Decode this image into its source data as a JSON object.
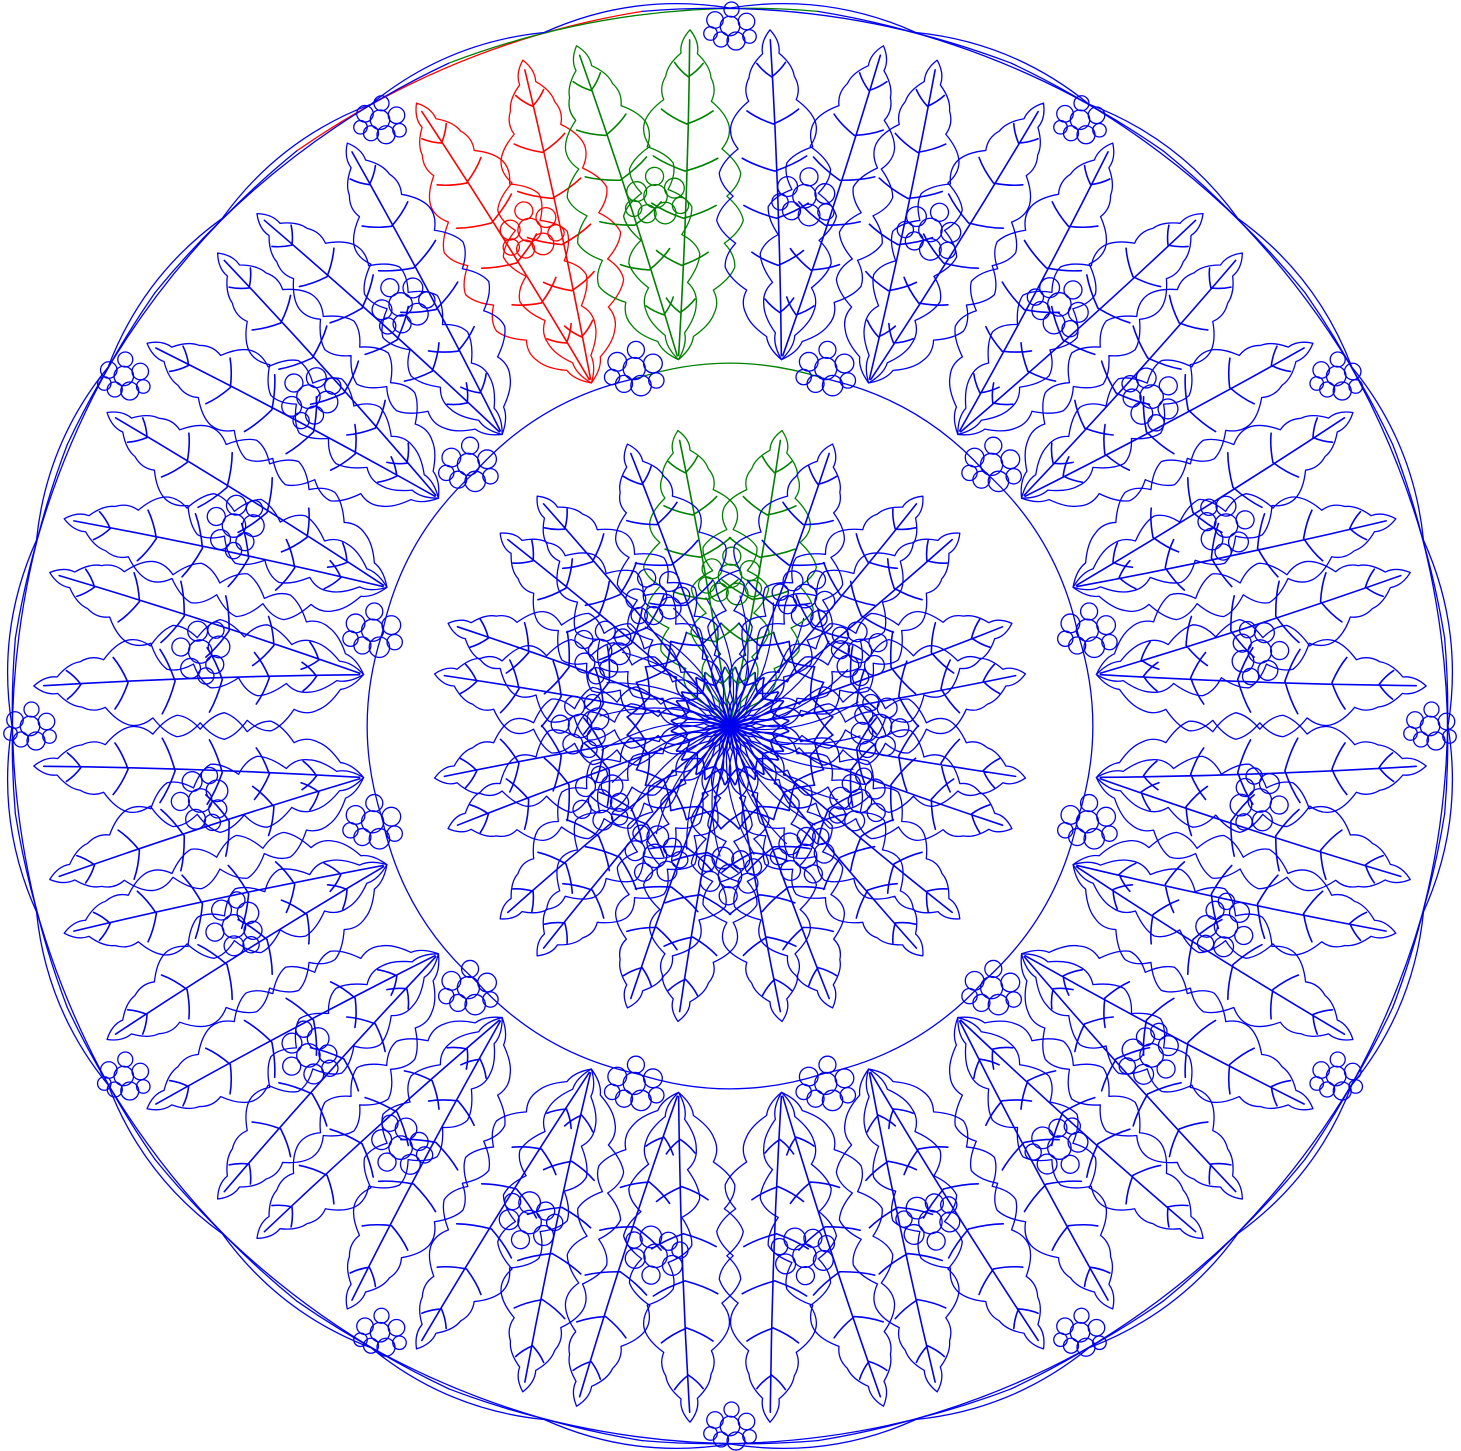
{
  "design": {
    "motif": "holly-leaves-and-berries",
    "symmetry": "radial",
    "outer_ring_segments": 12,
    "inner_ring_segments": 12,
    "center_rays": 12,
    "colors": {
      "background": "#ffffff",
      "primary": "#0000ee",
      "highlight_outer": "#ff0000",
      "highlight_inner": "#008000"
    },
    "highlights": [
      {
        "ring": "outer",
        "segment": 0,
        "color_key": "highlight_outer"
      },
      {
        "ring": "outer-twin",
        "segment": 0,
        "color_key": "highlight_inner"
      },
      {
        "ring": "inner",
        "segment": 0,
        "color_key": "highlight_inner"
      }
    ]
  }
}
